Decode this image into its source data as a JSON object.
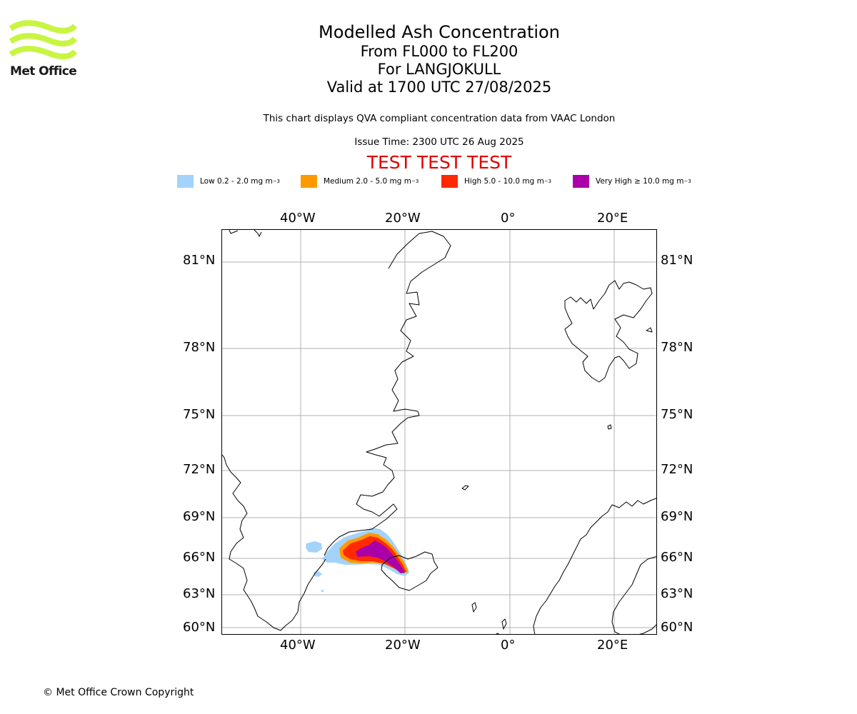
{
  "header": {
    "logo_text": "Met Office",
    "title": "Modelled Ash Concentration",
    "level_range": "From FL000 to FL200",
    "volcano": "For LANGJOKULL",
    "valid_time": "Valid at 1700 UTC 27/08/2025",
    "description": "This chart displays QVA compliant concentration data from VAAC London",
    "issue_time": "Issue Time: 2300 UTC 26 Aug 2025",
    "test_banner": "TEST TEST TEST"
  },
  "legend": [
    {
      "label": "Low 0.2 - 2.0 mg m",
      "exponent": "−3",
      "color": "#a3d3fa"
    },
    {
      "label": "Medium 2.0 - 5.0 mg m",
      "exponent": "−3",
      "color": "#ff9900"
    },
    {
      "label": "High 5.0 - 10.0 mg m",
      "exponent": "−3",
      "color": "#ff2a00"
    },
    {
      "label": "Very High ≥ 10.0 mg m",
      "exponent": "−3",
      "color": "#aa00aa"
    }
  ],
  "map": {
    "longitude_labels": [
      "40°W",
      "20°W",
      "0°",
      "20°E"
    ],
    "latitude_labels": [
      "81°N",
      "78°N",
      "75°N",
      "72°N",
      "69°N",
      "66°N",
      "63°N",
      "60°N"
    ],
    "grid_color": "#b0b0b0",
    "coast_color": "#000000"
  },
  "footer": {
    "copyright": "© Met Office Crown Copyright"
  }
}
